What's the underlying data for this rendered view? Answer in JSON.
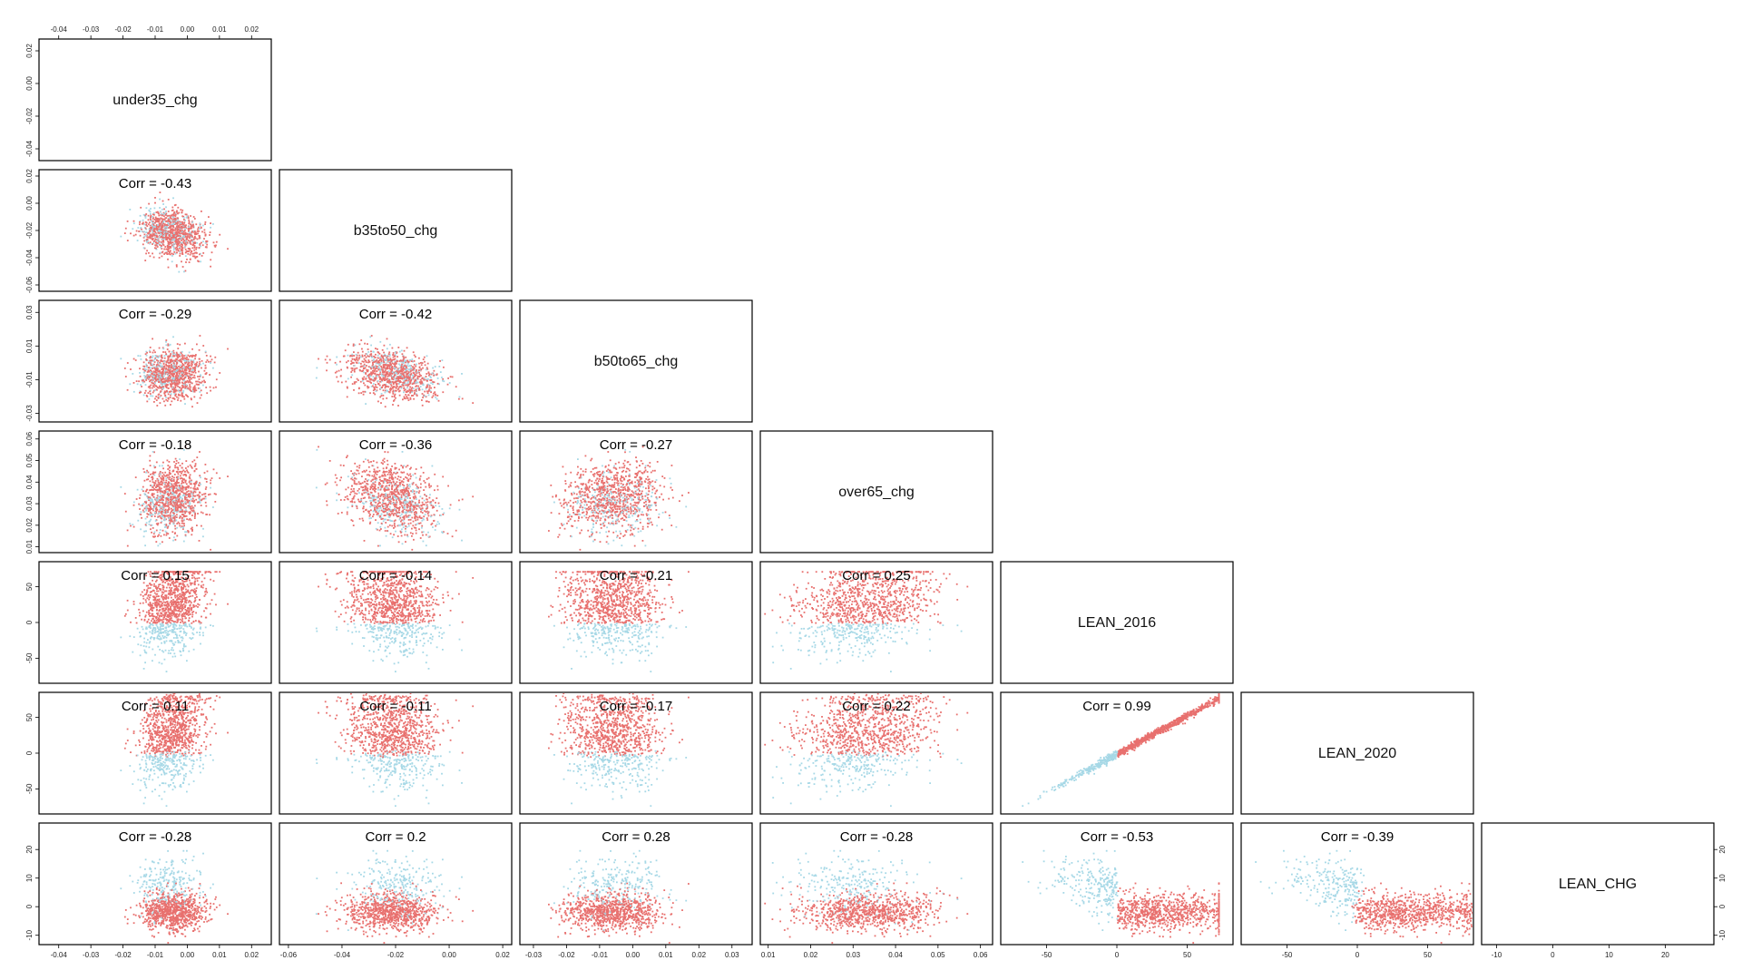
{
  "chart_data": {
    "type": "scatter",
    "variables": [
      "under35_chg",
      "b35to50_chg",
      "b50to65_chg",
      "over65_chg",
      "LEAN_2016",
      "LEAN_2020",
      "LEAN_CHG"
    ],
    "axis_ranges": {
      "under35_chg": [
        -0.045,
        0.025
      ],
      "b35to50_chg": [
        -0.062,
        0.022
      ],
      "b50to65_chg": [
        -0.033,
        0.035
      ],
      "over65_chg": [
        0.009,
        0.062
      ],
      "LEAN_2016": [
        -80,
        80
      ],
      "LEAN_2020": [
        -80,
        80
      ],
      "LEAN_CHG": [
        -12,
        28
      ]
    },
    "tick_values": {
      "under35_chg": [
        "-0.04",
        "-0.03",
        "-0.02",
        "-0.01",
        "0.00",
        "0.01",
        "0.02"
      ],
      "b35to50_chg": [
        "-0.06",
        "-0.04",
        "-0.02",
        "0.00",
        "0.02"
      ],
      "b50to65_chg": [
        "-0.03",
        "-0.02",
        "-0.01",
        "0.00",
        "0.01",
        "0.02",
        "0.03"
      ],
      "over65_chg": [
        "0.01",
        "0.02",
        "0.03",
        "0.04",
        "0.05",
        "0.06"
      ],
      "LEAN_2016": [
        "-50",
        "0",
        "50"
      ],
      "LEAN_2020": [
        "-50",
        "0",
        "50"
      ],
      "LEAN_CHG": [
        "-10",
        "0",
        "10",
        "20"
      ]
    },
    "left_axis_ticks": {
      "under35_chg": [
        "0.02",
        "0.00",
        "-0.02",
        "-0.04"
      ],
      "b35to50_chg": [
        "0.02",
        "0.00",
        "-0.02",
        "-0.04",
        "-0.06"
      ],
      "b50to65_chg": [
        "0.03",
        "0.01",
        "-0.01",
        "-0.03"
      ],
      "over65_chg": [
        "0.06",
        "0.05",
        "0.04",
        "0.03",
        "0.02",
        "0.01"
      ],
      "LEAN_2016": [
        "50",
        "0",
        "-50"
      ],
      "LEAN_2020": [
        "50",
        "0",
        "-50"
      ],
      "LEAN_CHG": [
        "20",
        "10",
        "0",
        "-10"
      ]
    },
    "correlations": [
      {
        "row": "b35to50_chg",
        "col": "under35_chg",
        "label": "Corr = -0.43",
        "value": -0.43
      },
      {
        "row": "b50to65_chg",
        "col": "under35_chg",
        "label": "Corr = -0.29",
        "value": -0.29
      },
      {
        "row": "b50to65_chg",
        "col": "b35to50_chg",
        "label": "Corr = -0.42",
        "value": -0.42
      },
      {
        "row": "over65_chg",
        "col": "under35_chg",
        "label": "Corr = -0.18",
        "value": -0.18
      },
      {
        "row": "over65_chg",
        "col": "b35to50_chg",
        "label": "Corr = -0.36",
        "value": -0.36
      },
      {
        "row": "over65_chg",
        "col": "b50to65_chg",
        "label": "Corr = -0.27",
        "value": -0.27
      },
      {
        "row": "LEAN_2016",
        "col": "under35_chg",
        "label": "Corr = 0.15",
        "value": 0.15
      },
      {
        "row": "LEAN_2016",
        "col": "b35to50_chg",
        "label": "Corr = -0.14",
        "value": -0.14
      },
      {
        "row": "LEAN_2016",
        "col": "b50to65_chg",
        "label": "Corr = -0.21",
        "value": -0.21
      },
      {
        "row": "LEAN_2016",
        "col": "over65_chg",
        "label": "Corr = 0.25",
        "value": 0.25
      },
      {
        "row": "LEAN_2020",
        "col": "under35_chg",
        "label": "Corr = 0.11",
        "value": 0.11
      },
      {
        "row": "LEAN_2020",
        "col": "b35to50_chg",
        "label": "Corr = -0.11",
        "value": -0.11
      },
      {
        "row": "LEAN_2020",
        "col": "b50to65_chg",
        "label": "Corr = -0.17",
        "value": -0.17
      },
      {
        "row": "LEAN_2020",
        "col": "over65_chg",
        "label": "Corr = 0.22",
        "value": 0.22
      },
      {
        "row": "LEAN_2020",
        "col": "LEAN_2016",
        "label": "Corr = 0.99",
        "value": 0.99
      },
      {
        "row": "LEAN_CHG",
        "col": "under35_chg",
        "label": "Corr = -0.28",
        "value": -0.28
      },
      {
        "row": "LEAN_CHG",
        "col": "b35to50_chg",
        "label": "Corr = 0.2",
        "value": 0.2
      },
      {
        "row": "LEAN_CHG",
        "col": "b50to65_chg",
        "label": "Corr = 0.28",
        "value": 0.28
      },
      {
        "row": "LEAN_CHG",
        "col": "over65_chg",
        "label": "Corr = -0.28",
        "value": -0.28
      },
      {
        "row": "LEAN_CHG",
        "col": "LEAN_2016",
        "label": "Corr = -0.53",
        "value": -0.53
      },
      {
        "row": "LEAN_CHG",
        "col": "LEAN_2020",
        "label": "Corr = -0.39",
        "value": -0.39
      }
    ],
    "point_colors": {
      "lean_positive": "#e8706e",
      "lean_negative": "#a6d8e6"
    },
    "grid": false
  }
}
